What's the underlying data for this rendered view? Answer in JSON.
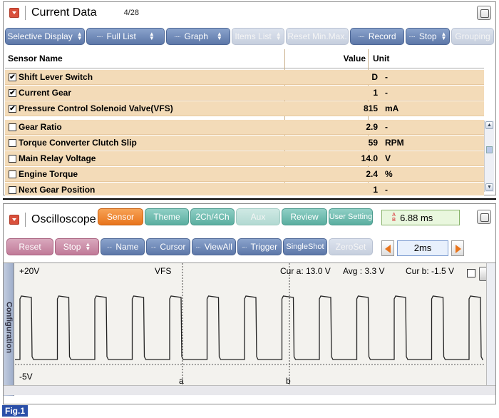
{
  "current_data": {
    "title": "Current Data",
    "page": "4/28",
    "buttons": {
      "selective_display": "Selective Display",
      "full_list": "Full List",
      "graph": "Graph",
      "items_list": "Items List",
      "reset_minmax": "Reset Min.Max.",
      "record": "Record",
      "stop": "Stop",
      "grouping": "Grouping"
    },
    "headers": {
      "name": "Sensor Name",
      "value": "Value",
      "unit": "Unit"
    },
    "rows": [
      {
        "name": "Shift Lever Switch",
        "value": "D",
        "unit": "-",
        "checked": true
      },
      {
        "name": "Current Gear",
        "value": "1",
        "unit": "-",
        "checked": true
      },
      {
        "name": "Pressure Control Solenoid Valve(VFS)",
        "value": "815",
        "unit": "mA",
        "checked": true
      },
      {
        "name": "Gear Ratio",
        "value": "2.9",
        "unit": "-",
        "checked": false
      },
      {
        "name": "Torque Converter Clutch Slip",
        "value": "59",
        "unit": "RPM",
        "checked": false
      },
      {
        "name": "Main Relay Voltage",
        "value": "14.0",
        "unit": "V",
        "checked": false
      },
      {
        "name": "Engine Torque",
        "value": "2.4",
        "unit": "%",
        "checked": false
      },
      {
        "name": "Next Gear Position",
        "value": "1",
        "unit": "-",
        "checked": false
      }
    ]
  },
  "oscilloscope": {
    "title": "Oscilloscope",
    "tabs": {
      "sensor": "Sensor",
      "theme": "Theme",
      "ch": "2Ch/4Ch",
      "aux": "Aux",
      "review": "Review",
      "user_setting": "User Setting"
    },
    "measurement": "6.88 ms",
    "buttons": {
      "reset": "Reset",
      "stop": "Stop",
      "name": "Name",
      "cursor": "Cursor",
      "viewall": "ViewAll",
      "trigger": "Trigger",
      "singleshot": "SingleShot",
      "zeroset": "ZeroSet"
    },
    "timediv": "2ms",
    "sidebar_label": "Configuration",
    "plot": {
      "ymax": "+20V",
      "ymin": "-5V",
      "channel": "VFS",
      "cur_a": "Cur a: 13.0 V",
      "avg": "Avg : 3.3 V",
      "cur_b": "Cur b: -1.5 V",
      "cursor_a": "a",
      "cursor_b": "b"
    }
  },
  "figure_label": "Fig.1",
  "colors": {
    "title_red": "#d9503c",
    "row_bg": "#f3dbb8",
    "btn_blue": "#6f88b8",
    "tab_orange": "#ef8a36",
    "tab_teal": "#6fbcaf",
    "btn_pink": "#c98aa6"
  }
}
